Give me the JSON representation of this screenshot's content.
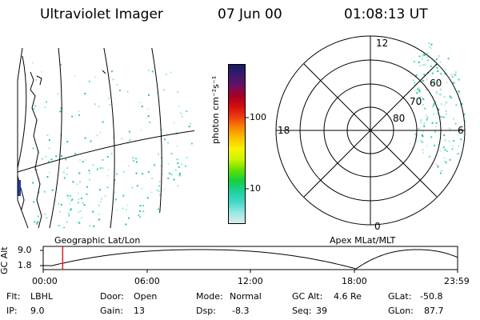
{
  "header": {
    "instrument": "Ultraviolet Imager",
    "date": "07 Jun 00",
    "time": "01:08:13 UT"
  },
  "colorbar": {
    "label": "photon cm⁻²s⁻¹",
    "ticks": [
      "100",
      "10"
    ],
    "colors": [
      "#1a1a60",
      "#3a1a70",
      "#6a1060",
      "#a8001f",
      "#d41010",
      "#f04010",
      "#f88a00",
      "#f8c400",
      "#f8f400",
      "#c8f400",
      "#60e000",
      "#10d040",
      "#20d0a0",
      "#40d8c8",
      "#98e8e0",
      "#dcebeb"
    ]
  },
  "left_panel": {
    "caption": "Geographic Lat/Lon"
  },
  "right_panel": {
    "caption": "Apex MLat/MLT",
    "mlt_labels": {
      "top": "12",
      "left": "18",
      "right": "6",
      "bottom": "0"
    },
    "lat_labels": [
      "60",
      "70",
      "80"
    ]
  },
  "timeline": {
    "ylabel": "GC Alt",
    "yticks": [
      "9.0",
      "1.8"
    ],
    "xticks": [
      "00:00",
      "06:00",
      "12:00",
      "18:00",
      "23:59"
    ],
    "current_time_fraction": 0.047,
    "marker_color": "#e02020"
  },
  "status": {
    "flt_label": "Flt:",
    "flt_value": "LBHL",
    "ip_label": "IP:",
    "ip_value": "9.0",
    "door_label": "Door:",
    "door_value": "Open",
    "gain_label": "Gain:",
    "gain_value": "13",
    "mode_label": "Mode:",
    "mode_value": "Normal",
    "dsp_label": "Dsp:",
    "dsp_value": "-8.3",
    "gcalt_label": "GC Alt:",
    "gcalt_value": "4.6 Re",
    "seq_label": "Seq:",
    "seq_value": "39",
    "glat_label": "GLat:",
    "glat_value": "-50.8",
    "glon_label": "GLon:",
    "glon_value": "87.7"
  }
}
